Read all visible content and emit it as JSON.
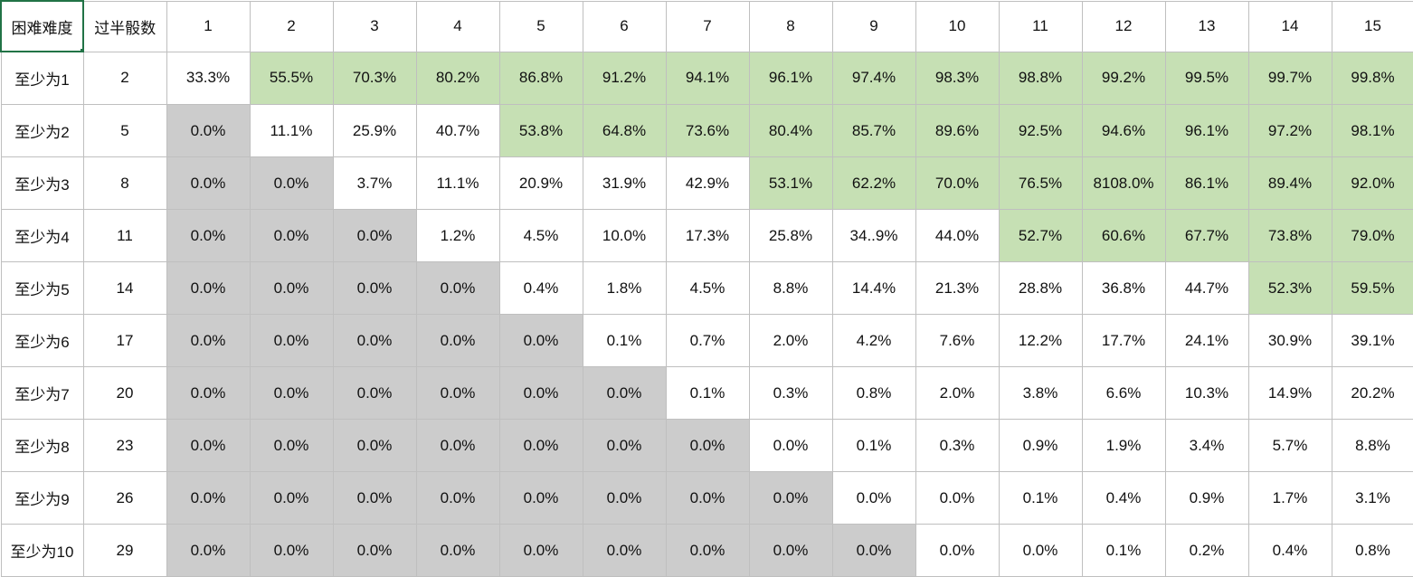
{
  "sheet": {
    "corner_label": "困难难度",
    "threshold_header": "过半骰数",
    "column_headers": [
      "1",
      "2",
      "3",
      "4",
      "5",
      "6",
      "7",
      "8",
      "9",
      "10",
      "11",
      "12",
      "13",
      "14",
      "15"
    ],
    "colors": {
      "green": "#c6e0b4",
      "gray": "#cccccc",
      "white": "#ffffff",
      "selection": "#217346"
    },
    "rows": [
      {
        "label": "至少为1",
        "threshold": "2",
        "values": [
          "33.3%",
          "55.5%",
          "70.3%",
          "80.2%",
          "86.8%",
          "91.2%",
          "94.1%",
          "96.1%",
          "97.4%",
          "98.3%",
          "98.8%",
          "99.2%",
          "99.5%",
          "99.7%",
          "99.8%"
        ],
        "fills": [
          "white",
          "green",
          "green",
          "green",
          "green",
          "green",
          "green",
          "green",
          "green",
          "green",
          "green",
          "green",
          "green",
          "green",
          "green"
        ]
      },
      {
        "label": "至少为2",
        "threshold": "5",
        "values": [
          "0.0%",
          "11.1%",
          "25.9%",
          "40.7%",
          "53.8%",
          "64.8%",
          "73.6%",
          "80.4%",
          "85.7%",
          "89.6%",
          "92.5%",
          "94.6%",
          "96.1%",
          "97.2%",
          "98.1%"
        ],
        "fills": [
          "gray",
          "white",
          "white",
          "white",
          "green",
          "green",
          "green",
          "green",
          "green",
          "green",
          "green",
          "green",
          "green",
          "green",
          "green"
        ]
      },
      {
        "label": "至少为3",
        "threshold": "8",
        "values": [
          "0.0%",
          "0.0%",
          "3.7%",
          "11.1%",
          "20.9%",
          "31.9%",
          "42.9%",
          "53.1%",
          "62.2%",
          "70.0%",
          "76.5%",
          "8108.0%",
          "86.1%",
          "89.4%",
          "92.0%"
        ],
        "fills": [
          "gray",
          "gray",
          "white",
          "white",
          "white",
          "white",
          "white",
          "green",
          "green",
          "green",
          "green",
          "green",
          "green",
          "green",
          "green"
        ]
      },
      {
        "label": "至少为4",
        "threshold": "11",
        "values": [
          "0.0%",
          "0.0%",
          "0.0%",
          "1.2%",
          "4.5%",
          "10.0%",
          "17.3%",
          "25.8%",
          "34..9%",
          "44.0%",
          "52.7%",
          "60.6%",
          "67.7%",
          "73.8%",
          "79.0%"
        ],
        "fills": [
          "gray",
          "gray",
          "gray",
          "white",
          "white",
          "white",
          "white",
          "white",
          "white",
          "white",
          "green",
          "green",
          "green",
          "green",
          "green"
        ]
      },
      {
        "label": "至少为5",
        "threshold": "14",
        "values": [
          "0.0%",
          "0.0%",
          "0.0%",
          "0.0%",
          "0.4%",
          "1.8%",
          "4.5%",
          "8.8%",
          "14.4%",
          "21.3%",
          "28.8%",
          "36.8%",
          "44.7%",
          "52.3%",
          "59.5%"
        ],
        "fills": [
          "gray",
          "gray",
          "gray",
          "gray",
          "white",
          "white",
          "white",
          "white",
          "white",
          "white",
          "white",
          "white",
          "white",
          "green",
          "green"
        ]
      },
      {
        "label": "至少为6",
        "threshold": "17",
        "values": [
          "0.0%",
          "0.0%",
          "0.0%",
          "0.0%",
          "0.0%",
          "0.1%",
          "0.7%",
          "2.0%",
          "4.2%",
          "7.6%",
          "12.2%",
          "17.7%",
          "24.1%",
          "30.9%",
          "39.1%"
        ],
        "fills": [
          "gray",
          "gray",
          "gray",
          "gray",
          "gray",
          "white",
          "white",
          "white",
          "white",
          "white",
          "white",
          "white",
          "white",
          "white",
          "white"
        ]
      },
      {
        "label": "至少为7",
        "threshold": "20",
        "values": [
          "0.0%",
          "0.0%",
          "0.0%",
          "0.0%",
          "0.0%",
          "0.0%",
          "0.1%",
          "0.3%",
          "0.8%",
          "2.0%",
          "3.8%",
          "6.6%",
          "10.3%",
          "14.9%",
          "20.2%"
        ],
        "fills": [
          "gray",
          "gray",
          "gray",
          "gray",
          "gray",
          "gray",
          "white",
          "white",
          "white",
          "white",
          "white",
          "white",
          "white",
          "white",
          "white"
        ]
      },
      {
        "label": "至少为8",
        "threshold": "23",
        "values": [
          "0.0%",
          "0.0%",
          "0.0%",
          "0.0%",
          "0.0%",
          "0.0%",
          "0.0%",
          "0.0%",
          "0.1%",
          "0.3%",
          "0.9%",
          "1.9%",
          "3.4%",
          "5.7%",
          "8.8%"
        ],
        "fills": [
          "gray",
          "gray",
          "gray",
          "gray",
          "gray",
          "gray",
          "gray",
          "white",
          "white",
          "white",
          "white",
          "white",
          "white",
          "white",
          "white"
        ]
      },
      {
        "label": "至少为9",
        "threshold": "26",
        "values": [
          "0.0%",
          "0.0%",
          "0.0%",
          "0.0%",
          "0.0%",
          "0.0%",
          "0.0%",
          "0.0%",
          "0.0%",
          "0.0%",
          "0.1%",
          "0.4%",
          "0.9%",
          "1.7%",
          "3.1%"
        ],
        "fills": [
          "gray",
          "gray",
          "gray",
          "gray",
          "gray",
          "gray",
          "gray",
          "gray",
          "white",
          "white",
          "white",
          "white",
          "white",
          "white",
          "white"
        ]
      },
      {
        "label": "至少为10",
        "threshold": "29",
        "values": [
          "0.0%",
          "0.0%",
          "0.0%",
          "0.0%",
          "0.0%",
          "0.0%",
          "0.0%",
          "0.0%",
          "0.0%",
          "0.0%",
          "0.0%",
          "0.1%",
          "0.2%",
          "0.4%",
          "0.8%"
        ],
        "fills": [
          "gray",
          "gray",
          "gray",
          "gray",
          "gray",
          "gray",
          "gray",
          "gray",
          "gray",
          "white",
          "white",
          "white",
          "white",
          "white",
          "white"
        ]
      }
    ]
  }
}
